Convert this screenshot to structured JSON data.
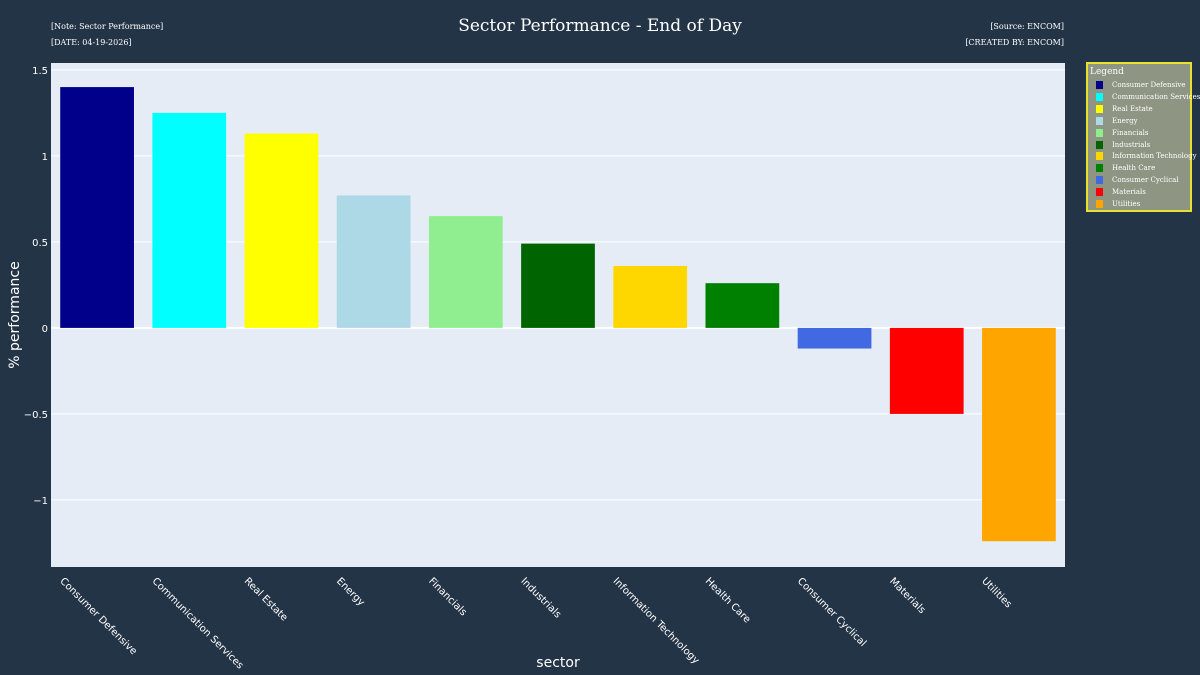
{
  "header": {
    "note": "[Note: Sector Performance]",
    "date": "[DATE: 04-19-2026]",
    "title": "Sector Performance - End of Day",
    "source": "[Source: ENCOM]",
    "created_by": "[CREATED BY: ENCOM]"
  },
  "legend": {
    "title": "Legend",
    "items": [
      {
        "label": "Consumer Defensive",
        "color": "#00008b"
      },
      {
        "label": "Communication Services",
        "color": "#00ffff"
      },
      {
        "label": "Real Estate",
        "color": "#ffff00"
      },
      {
        "label": "Energy",
        "color": "#add8e6"
      },
      {
        "label": "Financials",
        "color": "#90ee90"
      },
      {
        "label": "Industrials",
        "color": "#006400"
      },
      {
        "label": "Information Technology",
        "color": "#ffd700"
      },
      {
        "label": "Health Care",
        "color": "#008000"
      },
      {
        "label": "Consumer Cyclical",
        "color": "#4169e1"
      },
      {
        "label": "Materials",
        "color": "#ff0000"
      },
      {
        "label": "Utilities",
        "color": "#ffa500"
      }
    ]
  },
  "colors": {
    "page_background": "#243447",
    "plot_background": "#e5ecf6",
    "gridline": "#ffffff",
    "axis_text": "#ffffff",
    "legend_background": "#8e9583",
    "legend_border": "#e8e22e"
  },
  "chart_data": {
    "type": "bar",
    "title": "Sector Performance - End of Day",
    "xlabel": "sector",
    "ylabel": "% performance",
    "categories": [
      "Consumer Defensive",
      "Communication Services",
      "Real Estate",
      "Energy",
      "Financials",
      "Industrials",
      "Information Technology",
      "Health Care",
      "Consumer Cyclical",
      "Materials",
      "Utilities"
    ],
    "values": [
      1.4,
      1.25,
      1.13,
      0.77,
      0.65,
      0.49,
      0.36,
      0.26,
      -0.12,
      -0.5,
      -1.24
    ],
    "colors": [
      "#00008b",
      "#00ffff",
      "#ffff00",
      "#add8e6",
      "#90ee90",
      "#006400",
      "#ffd700",
      "#008000",
      "#4169e1",
      "#ff0000",
      "#ffa500"
    ],
    "yticks": [
      -1,
      -0.5,
      0,
      0.5,
      1,
      1.5
    ],
    "ytick_labels": [
      "−1",
      "−0.5",
      "0",
      "0.5",
      "1",
      "1.5"
    ],
    "ylim": [
      -1.39,
      1.54
    ],
    "grid": true,
    "legend_position": "right"
  }
}
